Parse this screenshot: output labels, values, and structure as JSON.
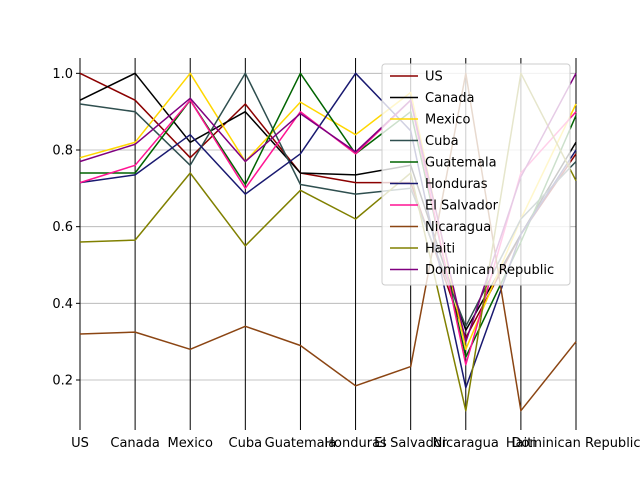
{
  "chart_data": {
    "type": "line",
    "subtype": "parallel-coordinates",
    "title": "",
    "xlabel": "",
    "ylabel": "",
    "categories": [
      "US",
      "Canada",
      "Mexico",
      "Cuba",
      "Guatemala",
      "Honduras",
      "El Salvador",
      "Nicaragua",
      "Haiti",
      "Dominican Republic"
    ],
    "ylim": [
      0.08,
      1.04
    ],
    "yticks": [
      0.2,
      0.4,
      0.6,
      0.8,
      1.0
    ],
    "ytick_labels": [
      "0.2",
      "0.4",
      "0.6",
      "0.8",
      "1.0"
    ],
    "grid": "horizontal",
    "legend_position": "upper-right",
    "series": [
      {
        "name": "US",
        "color": "#8b0000",
        "values": [
          1.0,
          0.93,
          0.78,
          0.92,
          0.74,
          0.715,
          0.715,
          0.31,
          0.58,
          0.79
        ]
      },
      {
        "name": "Canada",
        "color": "#000000",
        "values": [
          0.93,
          1.0,
          0.82,
          0.9,
          0.74,
          0.735,
          0.76,
          0.33,
          0.58,
          0.82
        ]
      },
      {
        "name": "Mexico",
        "color": "#ffd700",
        "values": [
          0.78,
          0.82,
          1.0,
          0.77,
          0.925,
          0.84,
          0.95,
          0.28,
          0.62,
          0.92
        ]
      },
      {
        "name": "Cuba",
        "color": "#2f4f4f",
        "values": [
          0.92,
          0.9,
          0.76,
          1.0,
          0.71,
          0.685,
          0.7,
          0.34,
          0.62,
          0.77
        ]
      },
      {
        "name": "Guatemala",
        "color": "#006400",
        "values": [
          0.74,
          0.74,
          0.93,
          0.71,
          1.0,
          0.79,
          0.9,
          0.26,
          0.56,
          0.89
        ]
      },
      {
        "name": "Honduras",
        "color": "#191970",
        "values": [
          0.715,
          0.735,
          0.84,
          0.685,
          0.79,
          1.0,
          0.85,
          0.18,
          0.58,
          0.8
        ]
      },
      {
        "name": "El Salvador",
        "color": "#ff1493",
        "values": [
          0.715,
          0.76,
          0.93,
          0.7,
          0.9,
          0.79,
          0.93,
          0.24,
          0.74,
          0.9
        ]
      },
      {
        "name": "Nicaragua",
        "color": "#8b4513",
        "values": [
          0.32,
          0.325,
          0.28,
          0.34,
          0.29,
          0.185,
          0.235,
          1.0,
          0.12,
          0.3
        ]
      },
      {
        "name": "Haiti",
        "color": "#808000",
        "values": [
          0.56,
          0.565,
          0.74,
          0.55,
          0.695,
          0.62,
          0.74,
          0.12,
          1.0,
          0.72
        ]
      },
      {
        "name": "Dominican Republic",
        "color": "#800080",
        "values": [
          0.77,
          0.815,
          0.935,
          0.77,
          0.895,
          0.795,
          0.93,
          0.3,
          0.73,
          1.0
        ]
      }
    ]
  }
}
